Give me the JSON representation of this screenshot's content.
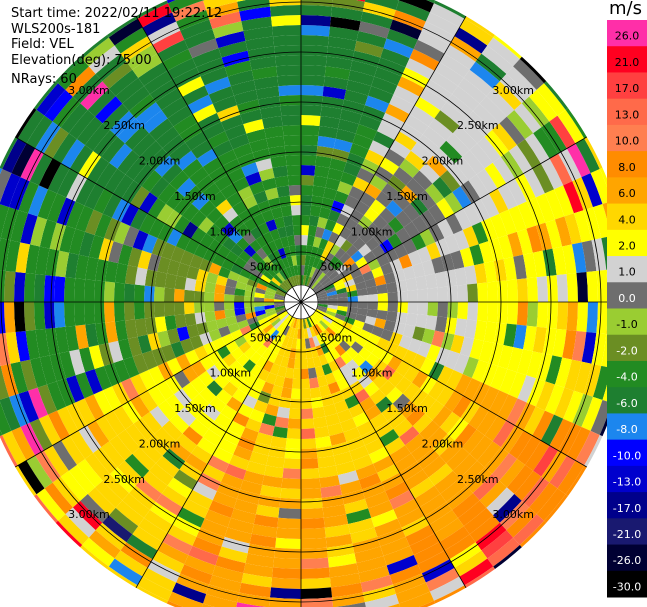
{
  "info": {
    "start_time_label": "Start time:",
    "start_time": "2022/02/11 19:22:12",
    "instrument": "WLS200s-181",
    "field_label": "Field:",
    "field": "VEL",
    "elevation_label": "Elevation(deg):",
    "elevation": "75.00",
    "nrays_label": "NRays:",
    "nrays": "60"
  },
  "colorbar": {
    "unit": "m/s",
    "ticks": [
      "26.0",
      "21.0",
      "17.0",
      "13.0",
      "10.0",
      "8.0",
      "6.0",
      "4.0",
      "2.0",
      "1.0",
      "0.0",
      "-1.0",
      "-2.0",
      "-4.0",
      "-6.0",
      "-8.0",
      "-10.0",
      "-13.0",
      "-17.0",
      "-21.0",
      "-26.0",
      "-30.0"
    ],
    "colors": [
      "#ff2fa8",
      "#ff0020",
      "#ff4040",
      "#ff6a4a",
      "#ff7f50",
      "#ff8c00",
      "#ffa500",
      "#ffd700",
      "#ffff00",
      "#d2d2d2",
      "#6e6e6e",
      "#9acd32",
      "#6b8e23",
      "#228b22",
      "#1e7f30",
      "#1c86ee",
      "#0000ff",
      "#0000cd",
      "#00008b",
      "#191970",
      "#000033",
      "#000000"
    ]
  },
  "range_rings": [
    "500m",
    "1.00km",
    "1.50km",
    "2.00km",
    "2.50km",
    "3.00km"
  ],
  "chart_data": {
    "type": "heatmap",
    "projection": "polar-ppi",
    "field": "VEL",
    "unit": "m/s",
    "nrays": 60,
    "elevation_deg": 75.0,
    "range_rings_km": [
      0.5,
      1.0,
      1.5,
      2.0,
      2.5,
      3.0
    ],
    "max_range_km": 3.3,
    "gate_km": 0.1,
    "colorbar_range": [
      -30,
      26
    ],
    "dominant_velocity_by_azimuth_sector": [
      {
        "sector": "N",
        "near": -2.0,
        "far": -6.0
      },
      {
        "sector": "NE",
        "near": 0.0,
        "far": 2.0
      },
      {
        "sector": "E",
        "near": 0.0,
        "far": 4.0
      },
      {
        "sector": "SE",
        "near": 2.0,
        "far": 10.0
      },
      {
        "sector": "S",
        "near": 4.0,
        "far": 8.0
      },
      {
        "sector": "SW",
        "near": 2.0,
        "far": 6.0
      },
      {
        "sector": "W",
        "near": 0.0,
        "far": -4.0
      },
      {
        "sector": "NW",
        "near": -2.0,
        "far": -6.0
      }
    ]
  }
}
